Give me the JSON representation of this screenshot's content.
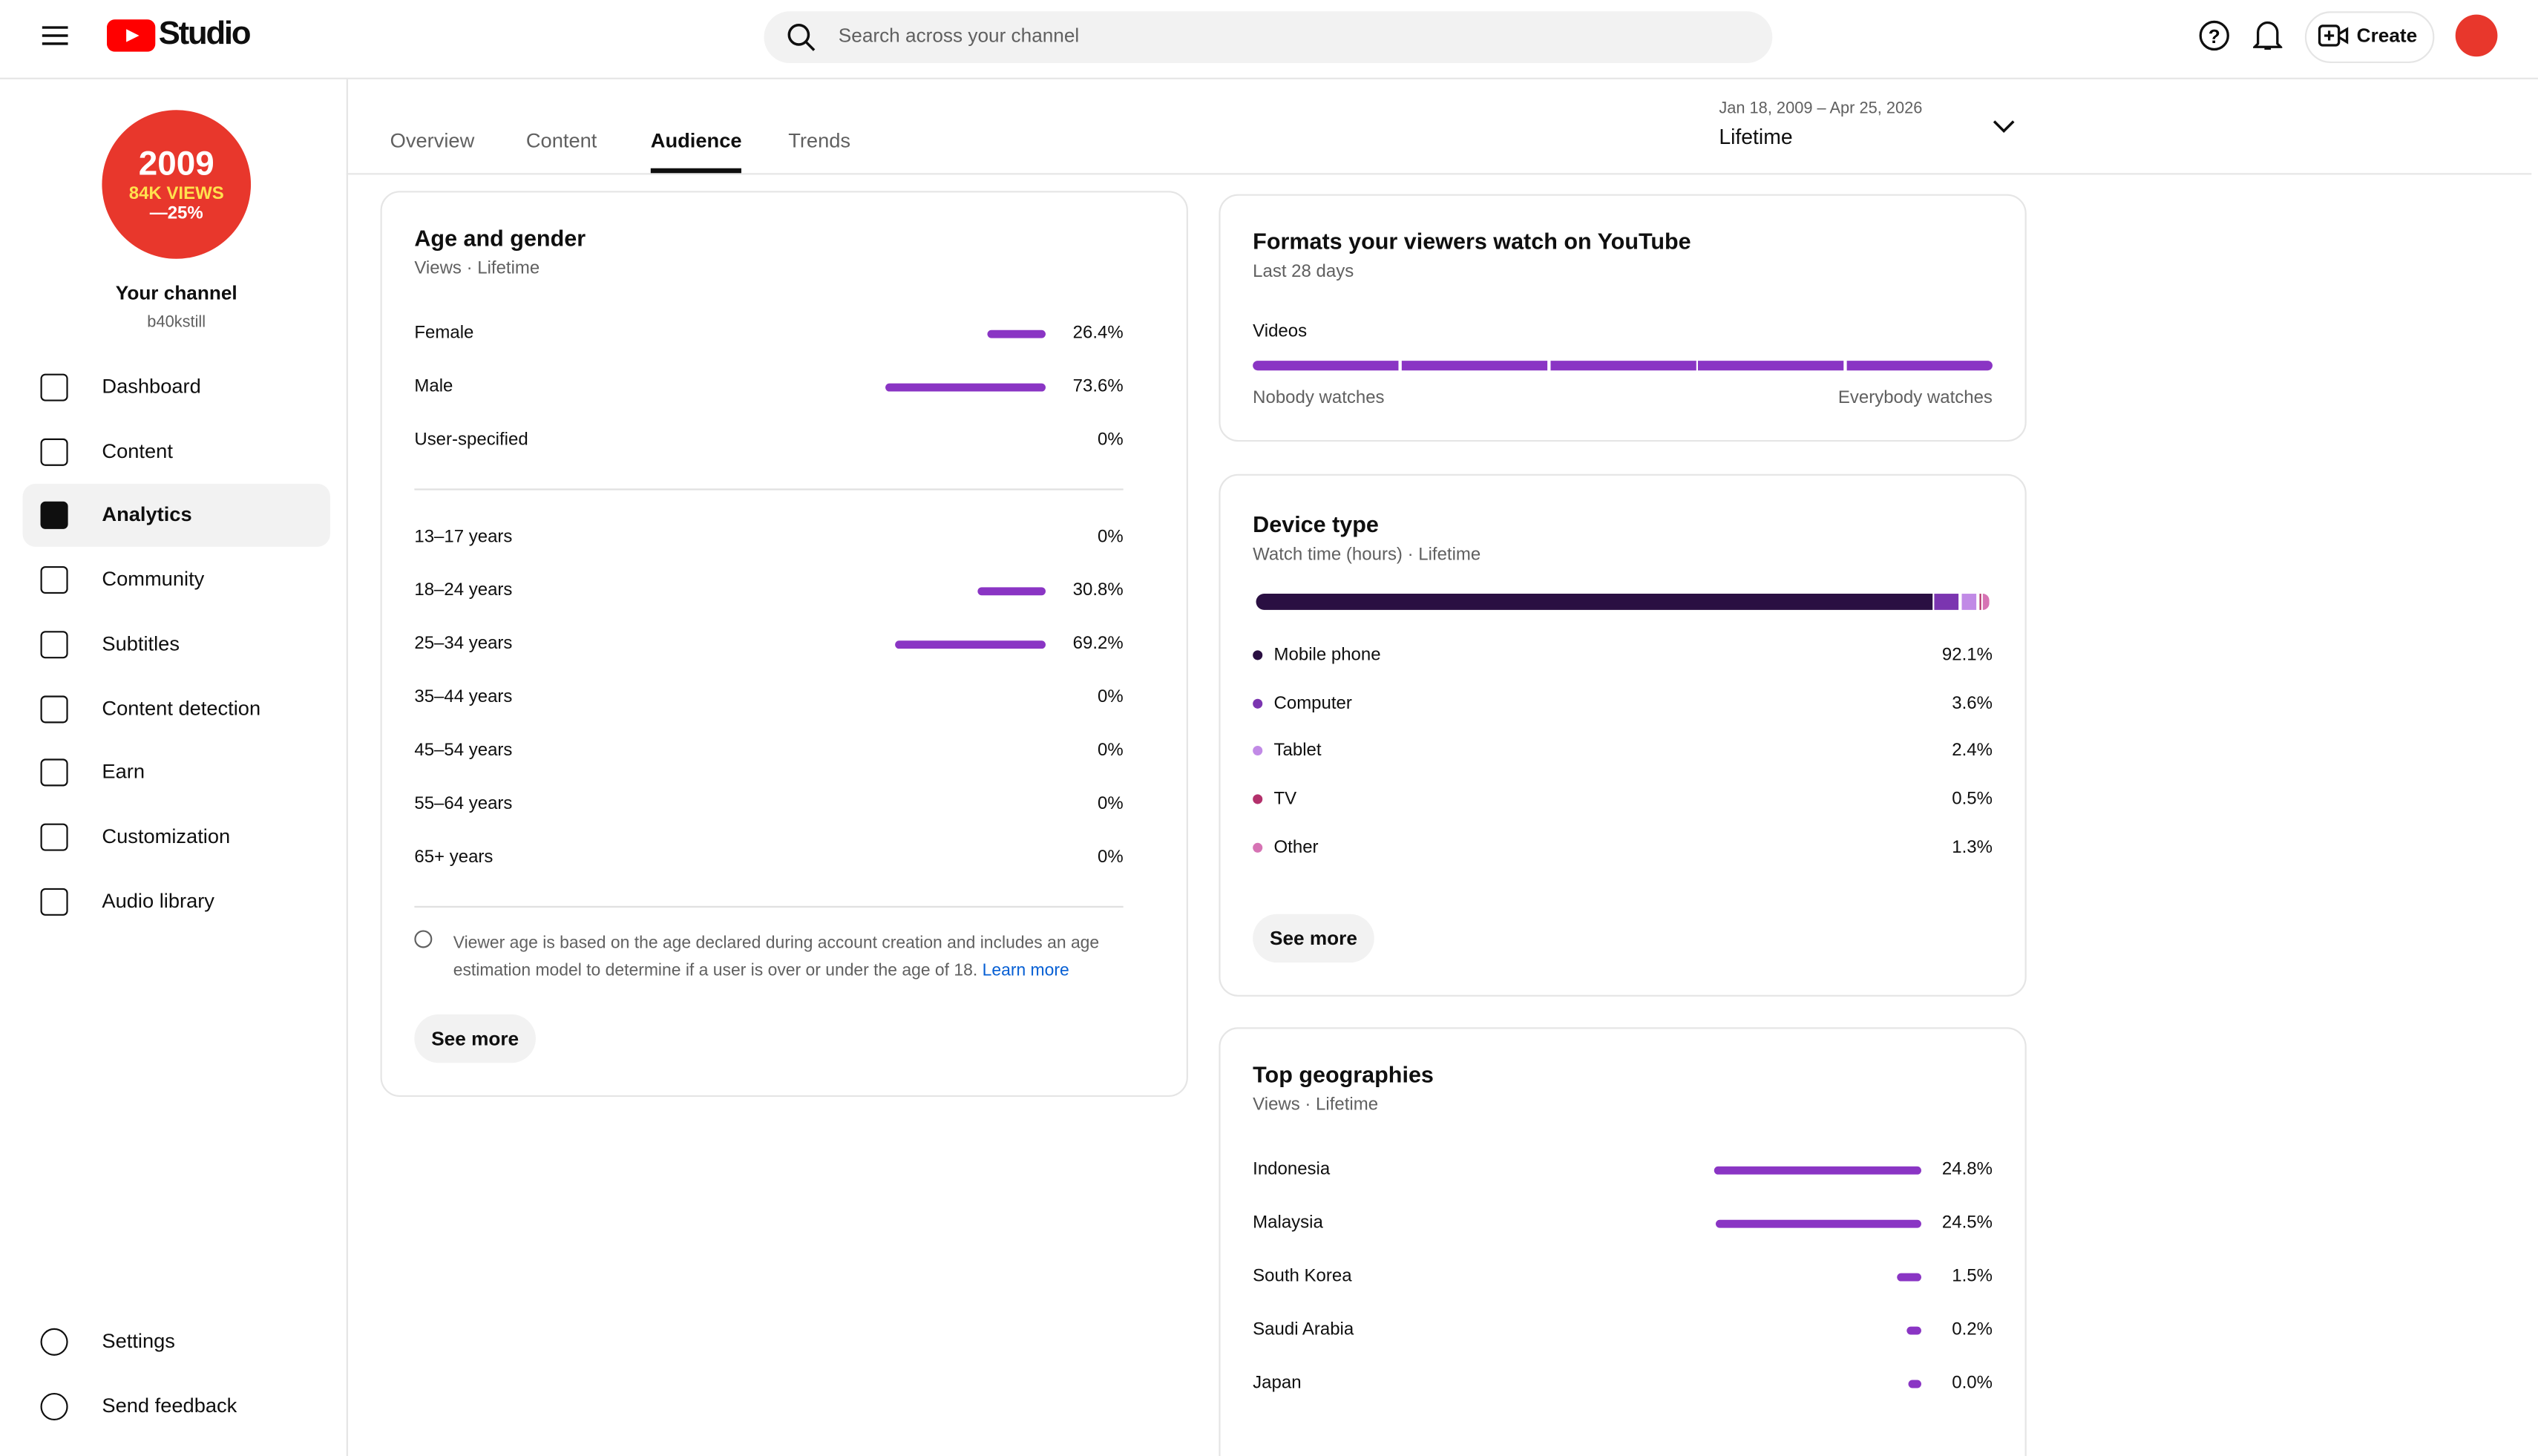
{
  "header": {
    "logo": "Studio",
    "search_placeholder": "Search across your channel",
    "create": "Create"
  },
  "sidebar": {
    "avatar": {
      "line1": "2009",
      "line2": "84K VIEWS",
      "line3": "—25%"
    },
    "channel_title": "Your channel",
    "channel_handle": "b40kstill",
    "nav": [
      "Dashboard",
      "Content",
      "Analytics",
      "Community",
      "Subtitles",
      "Content detection",
      "Earn",
      "Customization",
      "Audio library"
    ],
    "active_nav": 2,
    "footer_nav": [
      "Settings",
      "Send feedback"
    ]
  },
  "tabs": [
    "Overview",
    "Content",
    "Audience",
    "Trends"
  ],
  "active_tab": 2,
  "date_range": {
    "range": "Jan 18, 2009 – Apr 25, 2026",
    "period": "Lifetime"
  },
  "age_gender": {
    "title": "Age and gender",
    "subtitle": "Views · Lifetime",
    "gender": [
      {
        "label": "Female",
        "value": 26.4,
        "value_label": "26.4%"
      },
      {
        "label": "Male",
        "value": 73.6,
        "value_label": "73.6%"
      },
      {
        "label": "User-specified",
        "value": 0,
        "value_label": "0%"
      }
    ],
    "age": [
      {
        "label": "13–17 years",
        "value": 0,
        "value_label": "0%"
      },
      {
        "label": "18–24 years",
        "value": 30.8,
        "value_label": "30.8%"
      },
      {
        "label": "25–34 years",
        "value": 69.2,
        "value_label": "69.2%"
      },
      {
        "label": "35–44 years",
        "value": 0,
        "value_label": "0%"
      },
      {
        "label": "45–54 years",
        "value": 0,
        "value_label": "0%"
      },
      {
        "label": "55–64 years",
        "value": 0,
        "value_label": "0%"
      },
      {
        "label": "65+ years",
        "value": 0,
        "value_label": "0%"
      }
    ],
    "note": "Viewer age is based on the age declared during account creation and includes an age estimation model to determine if a user is over or under the age of 18.",
    "learn_more": "Learn more",
    "see_more": "See more"
  },
  "formats": {
    "title": "Formats your viewers watch on YouTube",
    "subtitle": "Last 28 days",
    "format": "Videos",
    "min_label": "Nobody watches",
    "max_label": "Everybody watches"
  },
  "device": {
    "title": "Device type",
    "subtitle": "Watch time (hours) · Lifetime",
    "items": [
      {
        "label": "Mobile phone",
        "value": 92.1,
        "value_label": "92.1%",
        "color": "#2a0f42"
      },
      {
        "label": "Computer",
        "value": 3.6,
        "value_label": "3.6%",
        "color": "#7b35b0"
      },
      {
        "label": "Tablet",
        "value": 2.4,
        "value_label": "2.4%",
        "color": "#c18ae6"
      },
      {
        "label": "TV",
        "value": 0.5,
        "value_label": "0.5%",
        "color": "#b3306b"
      },
      {
        "label": "Other",
        "value": 1.3,
        "value_label": "1.3%",
        "color": "#d673b4"
      }
    ],
    "see_more": "See more"
  },
  "geo": {
    "title": "Top geographies",
    "subtitle": "Views · Lifetime",
    "items": [
      {
        "label": "Indonesia",
        "value": 24.8,
        "value_label": "24.8%"
      },
      {
        "label": "Malaysia",
        "value": 24.5,
        "value_label": "24.5%"
      },
      {
        "label": "South Korea",
        "value": 1.5,
        "value_label": "1.5%"
      },
      {
        "label": "Saudi Arabia",
        "value": 0.2,
        "value_label": "0.2%"
      },
      {
        "label": "Japan",
        "value": 0.0,
        "value_label": "0.0%"
      }
    ]
  }
}
